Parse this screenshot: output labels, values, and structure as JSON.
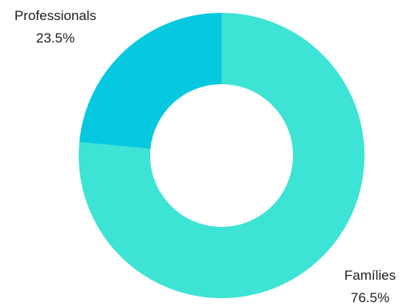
{
  "chart_data": {
    "type": "pie",
    "variant": "donut",
    "slices": [
      {
        "label": "Famílies",
        "value": 76.5,
        "value_label": "76.5%",
        "color": "#3de3d5"
      },
      {
        "label": "Professionals",
        "value": 23.5,
        "value_label": "23.5%",
        "color": "#06c8df"
      }
    ],
    "legend": false
  }
}
